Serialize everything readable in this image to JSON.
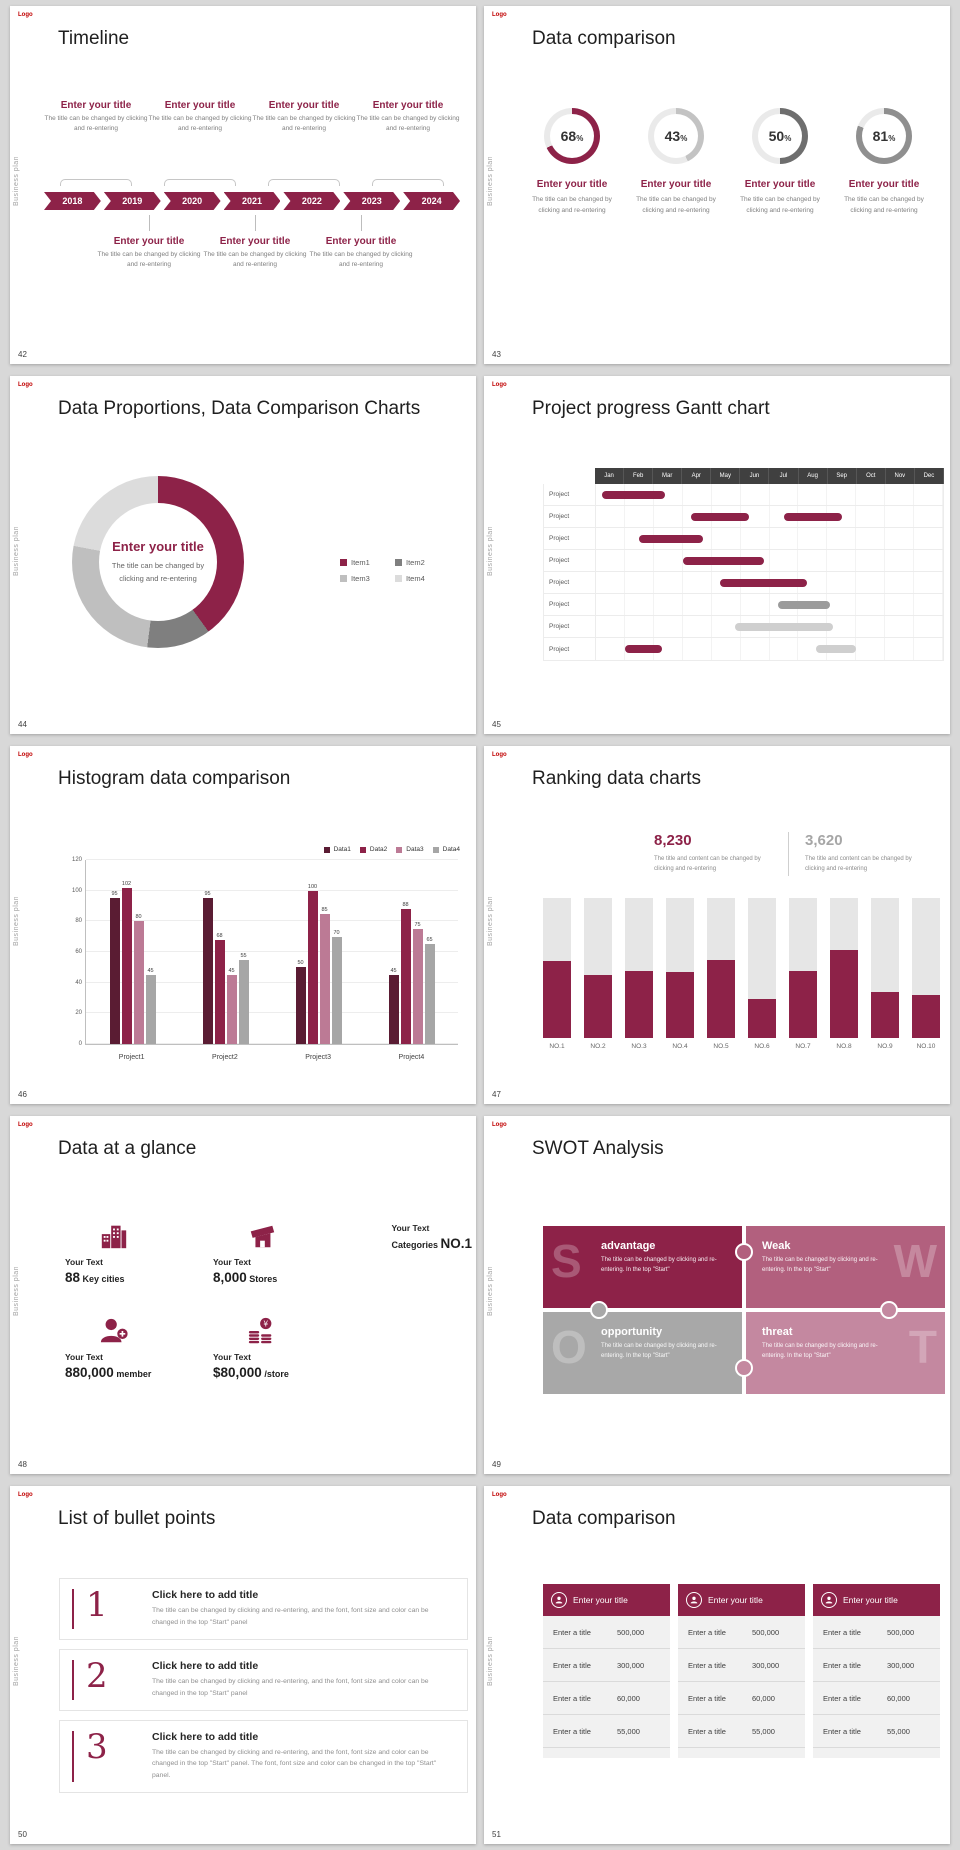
{
  "branding": {
    "logo_text": "Logo",
    "side_text": "Business plan"
  },
  "colors": {
    "accent": "#8D2248",
    "accent_dark": "#5A1C33",
    "mauve": "#BC7A95",
    "gray": "#A6A6A6"
  },
  "slides": [
    {
      "number": "42",
      "title": "Timeline",
      "years": [
        "2018",
        "2019",
        "2020",
        "2021",
        "2022",
        "2023",
        "2024"
      ],
      "top_blocks": [
        {
          "title": "Enter your title",
          "desc": "The title can be changed by clicking and re-entering"
        },
        {
          "title": "Enter your title",
          "desc": "The title can be changed by clicking and re-entering"
        },
        {
          "title": "Enter your title",
          "desc": "The title can be changed by clicking and re-entering"
        },
        {
          "title": "Enter your title",
          "desc": "The title can be changed by clicking and re-entering"
        }
      ],
      "bottom_blocks": [
        {
          "title": "Enter your title",
          "desc": "The title can be changed by clicking and re-entering"
        },
        {
          "title": "Enter your title",
          "desc": "The title can be changed by clicking and re-entering"
        },
        {
          "title": "Enter your title",
          "desc": "The title can be changed by clicking and re-entering"
        }
      ]
    },
    {
      "number": "43",
      "title": "Data comparison",
      "chart_data": {
        "type": "donut-set",
        "items": [
          {
            "value": 68,
            "color": "#8D2248",
            "ring_bg": "#EAEAEA",
            "title": "Enter your title",
            "desc": "The title can be changed by clicking and re-entering"
          },
          {
            "value": 43,
            "color": "#C3C3C3",
            "ring_bg": "#EAEAEA",
            "title": "Enter your title",
            "desc": "The title can be changed by clicking and re-entering"
          },
          {
            "value": 50,
            "color": "#6E6E6E",
            "ring_bg": "#EAEAEA",
            "title": "Enter your title",
            "desc": "The title can be changed by clicking and re-entering"
          },
          {
            "value": 81,
            "color": "#8F8F8F",
            "ring_bg": "#EAEAEA",
            "title": "Enter your title",
            "desc": "The title can be changed by clicking and re-entering"
          }
        ]
      }
    },
    {
      "number": "44",
      "title": "Data Proportions, Data Comparison Charts",
      "chart_data": {
        "type": "pie",
        "center_title": "Enter your title",
        "center_desc": "The title can be changed by clicking and re-entering",
        "segments": [
          {
            "name": "Item1",
            "value": 40,
            "color": "#8D2248"
          },
          {
            "name": "Item2",
            "value": 12,
            "color": "#7F7F7F"
          },
          {
            "name": "Item3",
            "value": 26,
            "color": "#BFBFBF"
          },
          {
            "name": "Item4",
            "value": 22,
            "color": "#DCDCDC"
          }
        ]
      }
    },
    {
      "number": "45",
      "title": "Project progress Gantt chart",
      "chart_data": {
        "type": "gantt",
        "months": [
          "Jan",
          "Feb",
          "Mar",
          "Apr",
          "May",
          "Jun",
          "Jul",
          "Aug",
          "Sep",
          "Oct",
          "Nov",
          "Dec"
        ],
        "row_label": "Project",
        "rows": [
          [
            {
              "start": 0.2,
              "span": 2.2,
              "color": "#8D2248"
            }
          ],
          [
            {
              "start": 3.3,
              "span": 2.0,
              "color": "#8D2248"
            },
            {
              "start": 6.5,
              "span": 2.0,
              "color": "#8D2248"
            }
          ],
          [
            {
              "start": 1.5,
              "span": 2.2,
              "color": "#8D2248"
            }
          ],
          [
            {
              "start": 3.0,
              "span": 2.8,
              "color": "#8D2248"
            }
          ],
          [
            {
              "start": 4.3,
              "span": 3.0,
              "color": "#8D2248"
            }
          ],
          [
            {
              "start": 6.3,
              "span": 1.8,
              "color": "#9B9B9B"
            }
          ],
          [
            {
              "start": 4.8,
              "span": 3.4,
              "color": "#CFCFCF"
            }
          ],
          [
            {
              "start": 1.0,
              "span": 1.3,
              "color": "#8D2248"
            },
            {
              "start": 7.6,
              "span": 1.4,
              "color": "#CFCFCF"
            }
          ]
        ]
      }
    },
    {
      "number": "46",
      "title": "Histogram data comparison",
      "chart_data": {
        "type": "bar",
        "categories": [
          "Project1",
          "Project2",
          "Project3",
          "Project4"
        ],
        "series": [
          {
            "name": "Data1",
            "color": "#5A1C33",
            "values": [
              95,
              95,
              50,
              45
            ]
          },
          {
            "name": "Data2",
            "color": "#8D2248",
            "values": [
              102,
              68,
              100,
              88
            ]
          },
          {
            "name": "Data3",
            "color": "#BC7A95",
            "values": [
              80,
              45,
              85,
              75
            ]
          },
          {
            "name": "Data4",
            "color": "#A6A6A6",
            "values": [
              45,
              55,
              70,
              65
            ]
          }
        ],
        "ylim": [
          0,
          120
        ],
        "yticks": [
          0,
          20,
          40,
          60,
          80,
          100,
          120
        ]
      }
    },
    {
      "number": "47",
      "title": "Ranking data charts",
      "stats": [
        {
          "value": "8,230",
          "color": "#8D2248",
          "desc": "The title and content can be changed by clicking and re-entering"
        },
        {
          "value": "3,620",
          "color": "#A6A6A6",
          "desc": "The title and content can be changed by clicking and re-entering"
        }
      ],
      "chart_data": {
        "type": "bar",
        "categories": [
          "NO.1",
          "NO.2",
          "NO.3",
          "NO.4",
          "NO.5",
          "NO.6",
          "NO.7",
          "NO.8",
          "NO.9",
          "NO.10"
        ],
        "values": [
          55,
          45,
          48,
          47,
          56,
          28,
          48,
          63,
          33,
          31
        ],
        "ymax": 100,
        "track_color": "#E6E6E6",
        "fill_color": "#8D2248"
      }
    },
    {
      "number": "48",
      "title": "Data at a glance",
      "stats": [
        {
          "icon": "building-icon",
          "label": "Your Text",
          "big": "88",
          "small": "Key cities",
          "big_first": true
        },
        {
          "icon": "store-icon",
          "label": "Your Text",
          "big": "8,000",
          "small": "Stores",
          "big_first": true
        },
        {
          "icon": "barrel-icon",
          "label": "Your Text",
          "big": "NO.1",
          "small": "Categories",
          "big_first": false,
          "icon_right": true
        },
        {
          "icon": "member-icon",
          "label": "Your Text",
          "big": "880,000",
          "small": "member",
          "big_first": true
        },
        {
          "icon": "coins-icon",
          "label": "Your Text",
          "big": "$80,000",
          "small": "/store",
          "big_first": true
        }
      ]
    },
    {
      "number": "49",
      "title": "SWOT Analysis",
      "quadrants": [
        {
          "letter": "S",
          "word": "advantage",
          "desc": "The title can be changed by clicking and re-entering. In the top \"Start\"",
          "color": "#8D2248"
        },
        {
          "letter": "W",
          "word": "Weak",
          "desc": "The title can be changed by clicking and re-entering. In the top \"Start\"",
          "color": "#B2607E"
        },
        {
          "letter": "O",
          "word": "opportunity",
          "desc": "The title can be changed by clicking and re-entering. In the top \"Start\"",
          "color": "#A8A8A8"
        },
        {
          "letter": "T",
          "word": "threat",
          "desc": "The title can be changed by clicking and re-entering. In the top \"Start\"",
          "color": "#C488A0"
        }
      ]
    },
    {
      "number": "50",
      "title": "List of bullet points",
      "items": [
        {
          "num": "1",
          "title": "Click here to add title",
          "desc": "The title can be changed by clicking and re-entering, and the font, font size and color can be changed in the top \"Start\" panel"
        },
        {
          "num": "2",
          "title": "Click here to add title",
          "desc": "The title can be changed by clicking and re-entering, and the font, font size and color can be changed in the top \"Start\" panel"
        },
        {
          "num": "3",
          "title": "Click here to add title",
          "desc": "The title can be changed by clicking and re-entering, and the font, font size and color can be changed in the top \"Start\" panel. The font, font size and color can be changed in the top \"Start\" panel."
        }
      ]
    },
    {
      "number": "51",
      "title": "Data comparison",
      "tables": [
        {
          "header": "Enter your title",
          "rows": [
            {
              "label": "Enter a title",
              "value": "500,000"
            },
            {
              "label": "Enter a title",
              "value": "300,000"
            },
            {
              "label": "Enter a title",
              "value": "60,000"
            },
            {
              "label": "Enter a title",
              "value": "55,000"
            }
          ]
        },
        {
          "header": "Enter your title",
          "rows": [
            {
              "label": "Enter a title",
              "value": "500,000"
            },
            {
              "label": "Enter a title",
              "value": "300,000"
            },
            {
              "label": "Enter a title",
              "value": "60,000"
            },
            {
              "label": "Enter a title",
              "value": "55,000"
            }
          ]
        },
        {
          "header": "Enter your title",
          "rows": [
            {
              "label": "Enter a title",
              "value": "500,000"
            },
            {
              "label": "Enter a title",
              "value": "300,000"
            },
            {
              "label": "Enter a title",
              "value": "60,000"
            },
            {
              "label": "Enter a title",
              "value": "55,000"
            }
          ]
        }
      ]
    }
  ]
}
